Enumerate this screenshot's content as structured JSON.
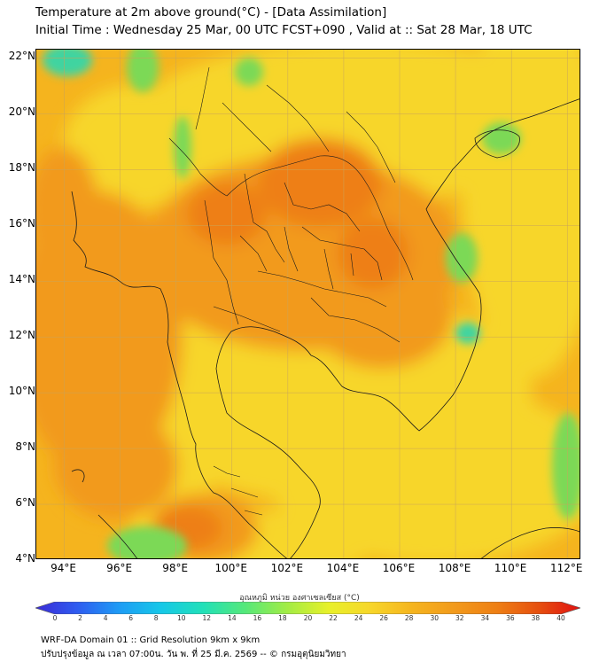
{
  "title": {
    "line1": "Temperature at 2m above ground(°C) - [Data Assimilation]",
    "line2": "Initial Time : Wednesday 25 Mar, 00 UTC FCST+090 , Valid at :: Sat 28 Mar, 18 UTC"
  },
  "map": {
    "lat_labels": [
      "22°N",
      "20°N",
      "18°N",
      "16°N",
      "14°N",
      "12°N",
      "10°N",
      "8°N",
      "6°N",
      "4°N"
    ],
    "lon_labels": [
      "94°E",
      "96°E",
      "98°E",
      "100°E",
      "102°E",
      "104°E",
      "106°E",
      "108°E",
      "110°E",
      "112°E"
    ],
    "colors": {
      "base": "#f5b41e",
      "yellow": "#f7d62a",
      "orange": "#f29a1c",
      "deep_orange": "#ee7f14",
      "green": "#7cd957",
      "cyan_green": "#3fd4a0",
      "grid": "#c9a45a",
      "border": "#1a1a1a"
    }
  },
  "colorbar": {
    "title": "อุณหภูมิ หน่วย องศาเซลเซียส (°C)",
    "ticks": [
      "0",
      "2",
      "4",
      "6",
      "8",
      "10",
      "12",
      "14",
      "16",
      "18",
      "20",
      "22",
      "24",
      "26",
      "28",
      "30",
      "32",
      "34",
      "36",
      "38",
      "40"
    ],
    "colors": [
      "#3b2bd6",
      "#2f5cf0",
      "#1e9cf5",
      "#16c8e8",
      "#21e0b8",
      "#55e87a",
      "#a2ec45",
      "#e8f02a",
      "#f7d62a",
      "#f5b41e",
      "#f29a1c",
      "#ee7f14",
      "#e6500f",
      "#e01010"
    ]
  },
  "footer": {
    "line1": "WRF-DA Domain 01 :: Grid Resolution 9km x 9km",
    "line2": "ปรับปรุงข้อมูล ณ เวลา 07:00น. วัน พ. ที่ 25 มี.ค. 2569 -- © กรมอุตุนิยมวิทยา"
  }
}
